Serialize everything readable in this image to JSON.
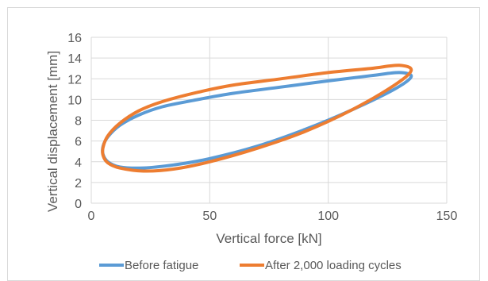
{
  "chart_data": {
    "type": "line",
    "title": "",
    "xlabel": "Vertical force [kN]",
    "ylabel": "Vertical displacement  [mm]",
    "xlim": [
      0,
      150
    ],
    "ylim": [
      0,
      16
    ],
    "x_ticks": [
      "0",
      "50",
      "100",
      "150"
    ],
    "y_ticks": [
      "0",
      "2",
      "4",
      "6",
      "8",
      "10",
      "12",
      "14",
      "16"
    ],
    "grid": true,
    "legend_position": "bottom",
    "series": [
      {
        "name": "Before fatigue",
        "color": "#5b9bd5",
        "x": [
          135,
          128,
          110,
          90,
          70,
          50,
          35,
          22,
          12,
          7,
          5,
          5,
          7,
          12,
          20,
          30,
          45,
          60,
          80,
          100,
          118,
          130,
          135
        ],
        "y": [
          12.2,
          11.0,
          9.0,
          7.1,
          5.5,
          4.3,
          3.7,
          3.4,
          3.5,
          4.0,
          4.7,
          5.5,
          6.4,
          7.5,
          8.5,
          9.3,
          10.0,
          10.6,
          11.2,
          11.8,
          12.3,
          12.6,
          12.2
        ]
      },
      {
        "name": "After 2,000 loading cycles",
        "color": "#ed7d31",
        "x": [
          135,
          128,
          110,
          90,
          70,
          50,
          35,
          22,
          12,
          7,
          5,
          5,
          7,
          12,
          20,
          30,
          45,
          60,
          80,
          100,
          118,
          130,
          135
        ],
        "y": [
          12.8,
          11.4,
          9.0,
          6.9,
          5.3,
          4.0,
          3.3,
          3.1,
          3.4,
          3.9,
          4.6,
          5.4,
          6.5,
          7.7,
          8.9,
          9.8,
          10.7,
          11.4,
          12.0,
          12.6,
          13.0,
          13.3,
          12.8
        ]
      }
    ]
  }
}
